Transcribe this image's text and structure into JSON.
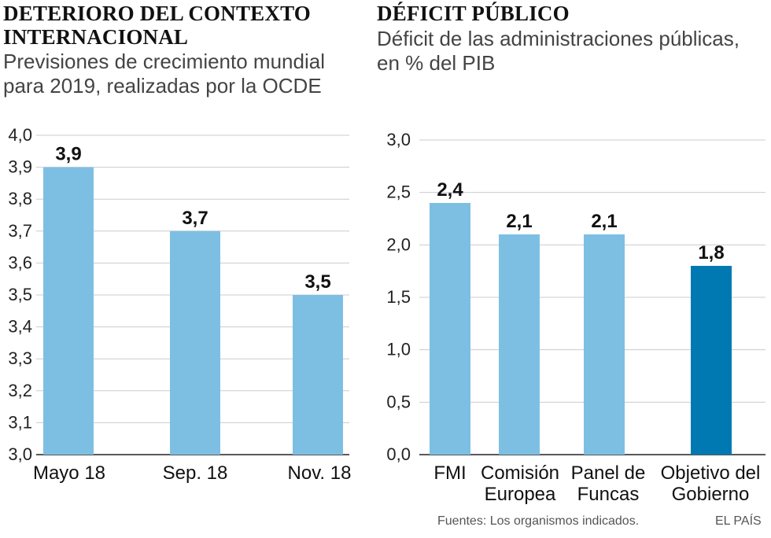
{
  "colors": {
    "bar": "#7dbfe3",
    "highlight": "#0079b3",
    "grid": "#cccccc",
    "axis": "#222222"
  },
  "source": "Fuentes: Los organismos indicados.",
  "brand": "EL PAÍS",
  "chart_data": [
    {
      "type": "bar",
      "title_lines": [
        "DETERIORO DEL CONTEXTO",
        "INTERNACIONAL"
      ],
      "subtitle_lines": [
        "Previsiones de crecimiento mundial",
        "para 2019, realizadas por la OCDE"
      ],
      "categories": [
        [
          "Mayo 18"
        ],
        [
          "Sep. 18"
        ],
        [
          "Nov. 18"
        ]
      ],
      "values": [
        3.9,
        3.7,
        3.5
      ],
      "value_labels": [
        "3,9",
        "3,7",
        "3,5"
      ],
      "ylim": [
        3.0,
        4.0
      ],
      "yticks": [
        "3,0",
        "3,1",
        "3,2",
        "3,3",
        "3,4",
        "3,5",
        "3,6",
        "3,7",
        "3,8",
        "3,9",
        "4,0"
      ],
      "highlight": [
        false,
        false,
        false
      ]
    },
    {
      "type": "bar",
      "title_lines": [
        "DÉFICIT PÚBLICO"
      ],
      "subtitle_lines": [
        "Déficit de las administraciones públicas,",
        "en % del PIB"
      ],
      "categories": [
        [
          "FMI"
        ],
        [
          "Comisión",
          "Europea"
        ],
        [
          "Panel de",
          "Funcas"
        ],
        [
          "Objetivo del",
          "Gobierno"
        ]
      ],
      "values": [
        2.4,
        2.1,
        2.1,
        1.8
      ],
      "value_labels": [
        "2,4",
        "2,1",
        "2,1",
        "1,8"
      ],
      "ylim": [
        0.0,
        3.0
      ],
      "yticks": [
        "0,0",
        "0,5",
        "1,0",
        "1,5",
        "2,0",
        "2,5",
        "3,0"
      ],
      "highlight": [
        false,
        false,
        false,
        true
      ]
    }
  ]
}
